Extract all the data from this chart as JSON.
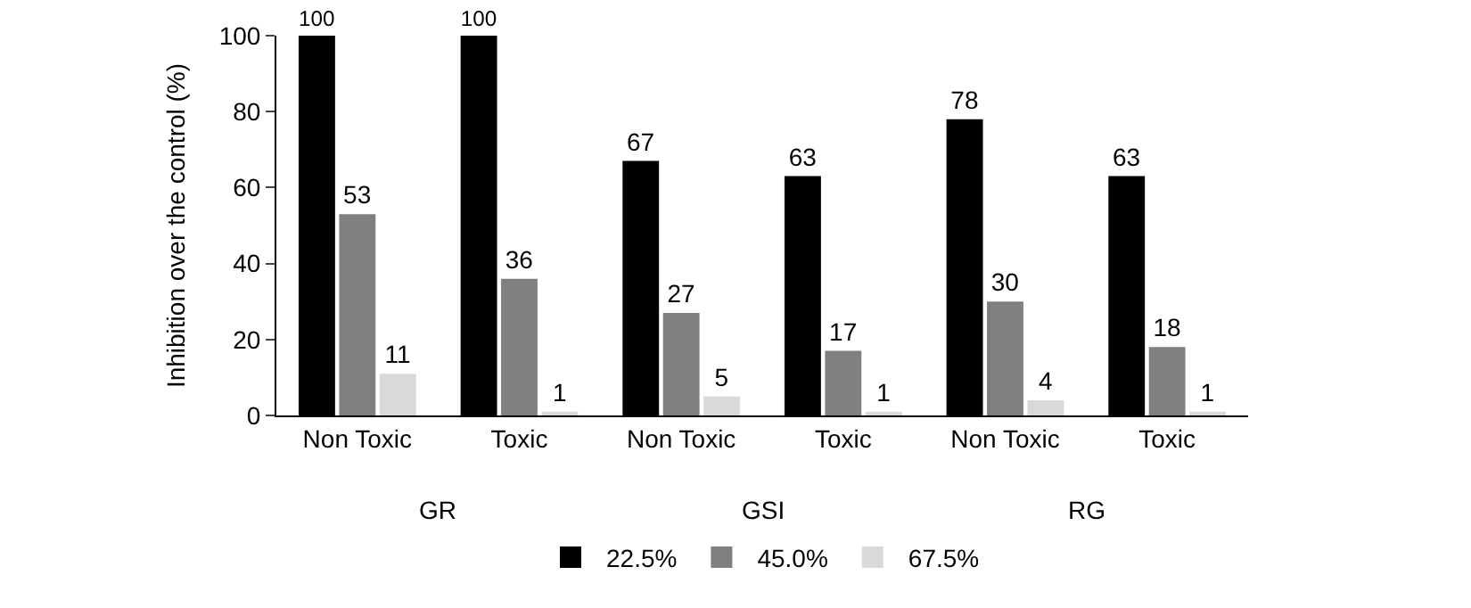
{
  "chart_data": {
    "type": "bar",
    "ylabel": "Inhibition over the control (%)",
    "categories": [
      "Non Toxic",
      "Toxic",
      "Non Toxic",
      "Toxic",
      "Non Toxic",
      "Toxic"
    ],
    "series": [
      {
        "name": "22.5%",
        "color": "#000000",
        "values": [
          100,
          100,
          67,
          63,
          78,
          63
        ]
      },
      {
        "name": "45.0%",
        "color": "#808080",
        "values": [
          53,
          36,
          27,
          17,
          30,
          18
        ]
      },
      {
        "name": "67.5%",
        "color": "#d9d9d9",
        "values": [
          11,
          1,
          5,
          1,
          4,
          1
        ]
      }
    ],
    "ylim": [
      0,
      100
    ],
    "yticks": [
      0,
      20,
      40,
      60,
      80,
      100
    ],
    "data_labels": true,
    "legend": "bottom",
    "annotations": [
      "GR",
      "GSI",
      "RG"
    ]
  }
}
